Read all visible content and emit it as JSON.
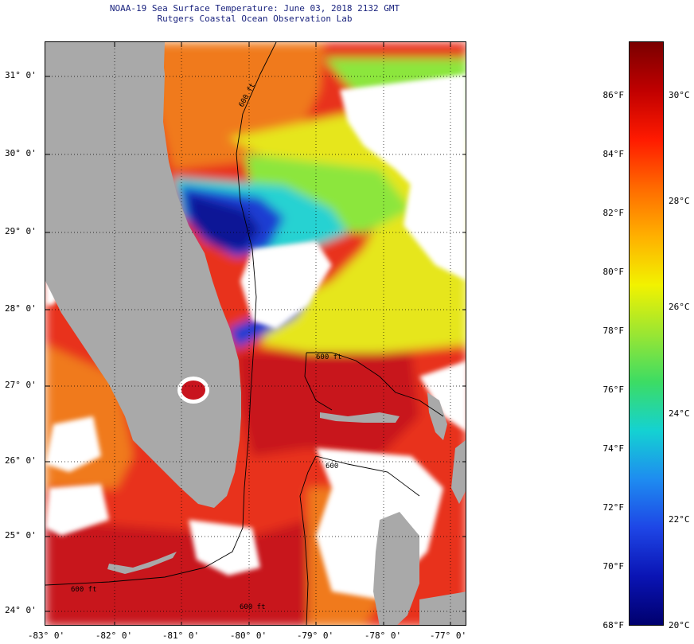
{
  "title": {
    "line1": "NOAA-19 Sea Surface Temperature:  June 03, 2018 2132 GMT",
    "line2": "Rutgers Coastal Ocean Observation Lab"
  },
  "map": {
    "lat_labels": [
      "31° 0'",
      "30° 0'",
      "29° 0'",
      "28° 0'",
      "27° 0'",
      "26° 0'",
      "25° 0'",
      "24° 0'"
    ],
    "lon_labels": [
      "-83° 0'",
      "-82° 0'",
      "-81° 0'",
      "-80° 0'",
      "-79° 0'",
      "-78° 0'",
      "-77° 0'"
    ],
    "contour_labels": [
      "600 ft",
      "600 ft",
      "600 ft",
      "600",
      "600 ft"
    ],
    "colors": {
      "land": "#a9a9a9",
      "cloud": "#ffffff",
      "warm": "#e8321e",
      "hot": "#c8141e",
      "orange": "#f07a1e",
      "yellow": "#e6e61e",
      "green": "#8ce63c",
      "cyan": "#28d2d2",
      "blue": "#1e3cd2",
      "navy": "#0a1496"
    }
  },
  "colorbar": {
    "fahrenheit_labels": [
      "86°F",
      "84°F",
      "82°F",
      "80°F",
      "78°F",
      "76°F",
      "74°F",
      "72°F",
      "70°F",
      "68°F"
    ],
    "celsius_labels": [
      "30°C",
      "28°C",
      "26°C",
      "24°C",
      "22°C",
      "20°C"
    ],
    "gradient_colors": [
      "#7a0000",
      "#c00000",
      "#ff1a00",
      "#ff6a00",
      "#ffb000",
      "#f2f200",
      "#9be632",
      "#3cdc64",
      "#14d2d2",
      "#1e8cf0",
      "#1e46e6",
      "#0a14b4",
      "#00006e"
    ]
  }
}
